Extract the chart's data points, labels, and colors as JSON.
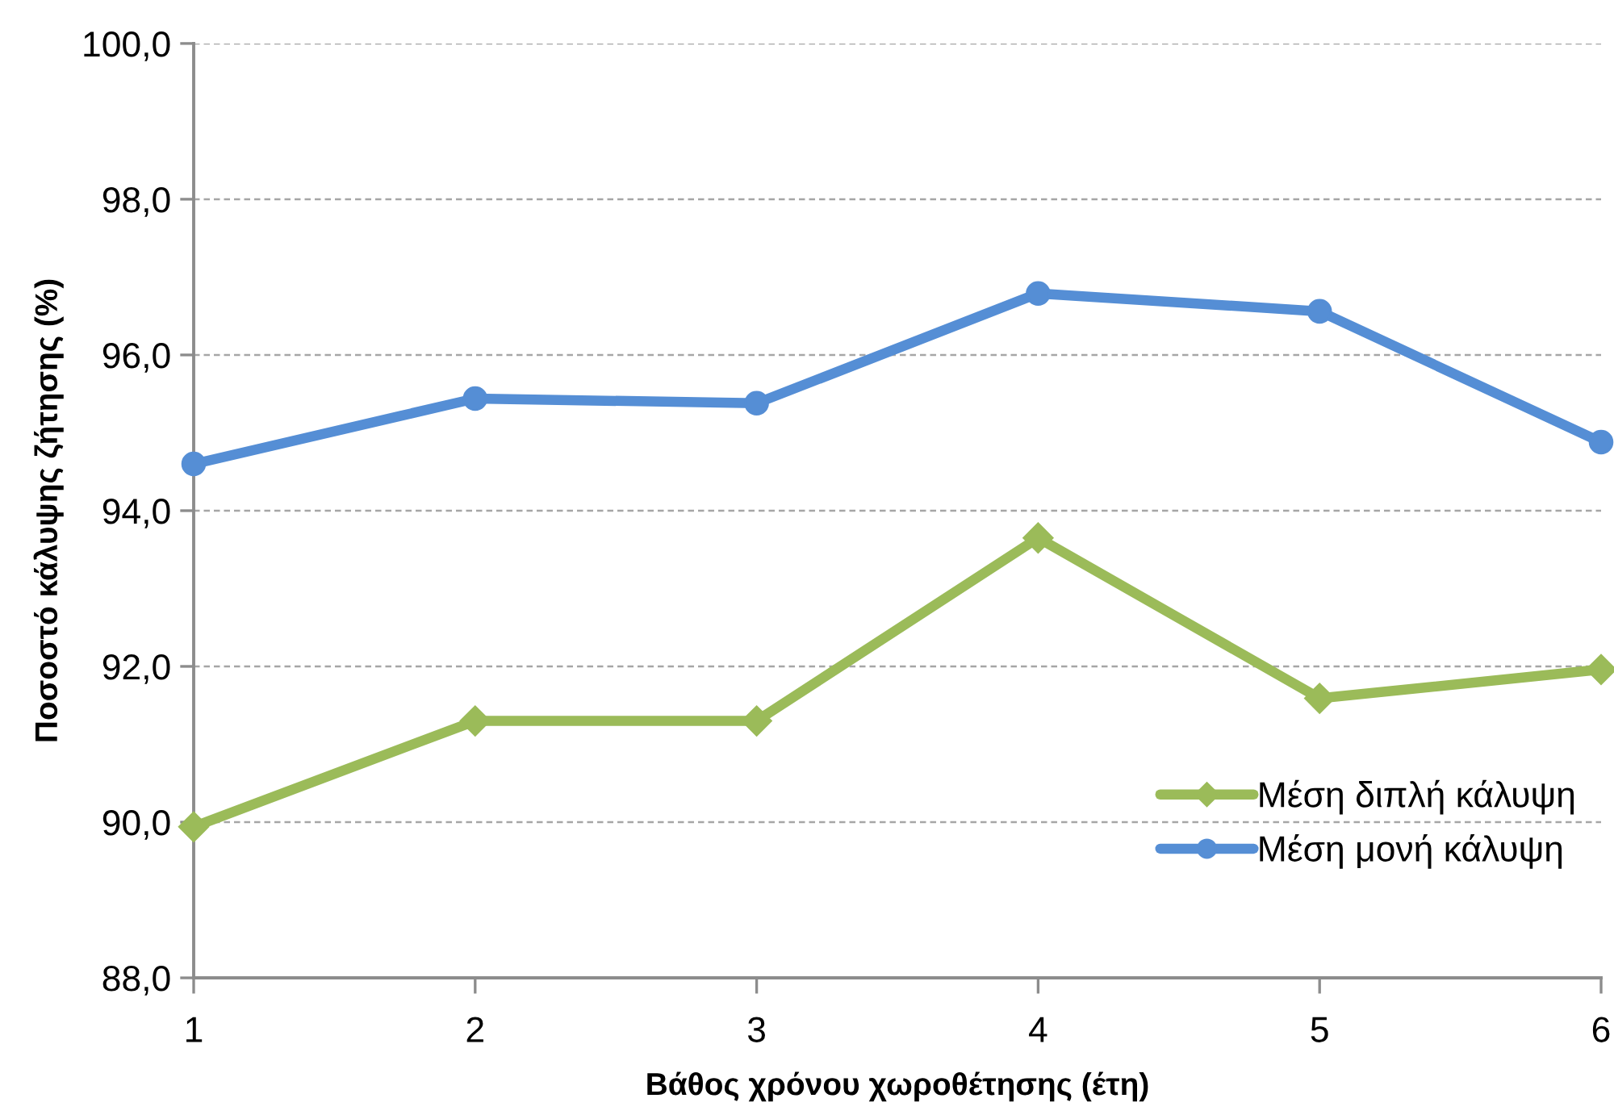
{
  "chart_data": {
    "type": "line",
    "xlabel": "Βάθος χρόνου χωροθέτησης (έτη)",
    "ylabel": "Ποσοστό κάλυψης ζήτησης (%)",
    "categories": [
      "1",
      "2",
      "3",
      "4",
      "5",
      "6"
    ],
    "series": [
      {
        "name": "Μέση διπλή κάλυψη",
        "color": "#9bbb59",
        "marker": "diamond",
        "values": [
          89.94,
          91.3,
          91.3,
          93.65,
          91.59,
          91.96
        ]
      },
      {
        "name": "Μέση μονή κάλυψη",
        "color": "#558ed5",
        "marker": "circle",
        "values": [
          94.6,
          95.44,
          95.38,
          96.79,
          96.56,
          94.88
        ]
      }
    ],
    "ylim": [
      88,
      100
    ],
    "yticks": [
      {
        "value": 88,
        "label": "88,0"
      },
      {
        "value": 90,
        "label": "90,0"
      },
      {
        "value": 92,
        "label": "92,0"
      },
      {
        "value": 94,
        "label": "94,0"
      },
      {
        "value": 96,
        "label": "96,0"
      },
      {
        "value": 98,
        "label": "98,0"
      },
      {
        "value": 100,
        "label": "100,0"
      }
    ],
    "grid": "y",
    "legend": "bottom right",
    "line_style": "solid"
  }
}
